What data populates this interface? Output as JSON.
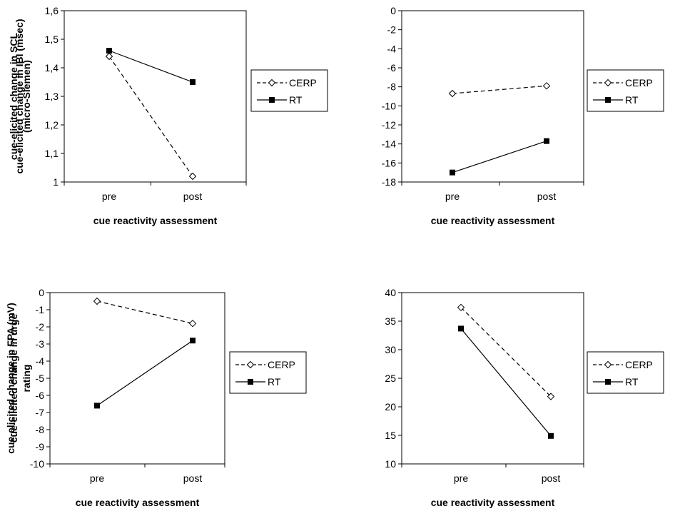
{
  "chart_data": [
    {
      "type": "line",
      "categories": [
        "pre",
        "post"
      ],
      "ylabel": [
        "cue-elicited change in SCL",
        "(micro-Siemen)"
      ],
      "xlabel": "cue reactivity assessment",
      "ylim": [
        1,
        1.6
      ],
      "yticks": [
        1,
        1.1,
        1.2,
        1.3,
        1.4,
        1.5,
        1.6
      ],
      "yticklabels": [
        "1",
        "1,1",
        "1,2",
        "1,3",
        "1,4",
        "1,5",
        "1,6"
      ],
      "legend": "right",
      "series": [
        {
          "name": "CERP",
          "values": [
            1.44,
            1.02
          ],
          "style": "dashed",
          "marker": "diamond-open"
        },
        {
          "name": "RT",
          "values": [
            1.46,
            1.35
          ],
          "style": "solid",
          "marker": "square-filled"
        }
      ]
    },
    {
      "type": "line",
      "categories": [
        "pre",
        "post"
      ],
      "ylabel": [
        "cue-elicited change in IBI (msec)"
      ],
      "xlabel": "cue reactivity assessment",
      "ylim": [
        -18,
        0
      ],
      "yticks": [
        -18,
        -16,
        -14,
        -12,
        -10,
        -8,
        -6,
        -4,
        -2,
        0
      ],
      "yticklabels": [
        "-18",
        "-16",
        "-14",
        "-12",
        "-10",
        "-8",
        "-6",
        "-4",
        "-2",
        "0"
      ],
      "legend": "right",
      "series": [
        {
          "name": "CERP",
          "values": [
            -8.7,
            -7.9
          ],
          "style": "dashed",
          "marker": "diamond-open"
        },
        {
          "name": "RT",
          "values": [
            -17.0,
            -13.7
          ],
          "style": "solid",
          "marker": "square-filled"
        }
      ]
    },
    {
      "type": "line",
      "categories": [
        "pre",
        "post"
      ],
      "ylabel": [
        "cue-elicited change in FPA (mV)"
      ],
      "xlabel": "cue reactivity assessment",
      "ylim": [
        -10,
        0
      ],
      "yticks": [
        -10,
        -9,
        -8,
        -7,
        -6,
        -5,
        -4,
        -3,
        -2,
        -1,
        0
      ],
      "yticklabels": [
        "-10",
        "-9",
        "-8",
        "-7",
        "-6",
        "-5",
        "-4",
        "-3",
        "-2",
        "-1",
        "0"
      ],
      "legend": "right",
      "series": [
        {
          "name": "CERP",
          "values": [
            -0.5,
            -1.8
          ],
          "style": "dashed",
          "marker": "diamond-open"
        },
        {
          "name": "RT",
          "values": [
            -6.6,
            -2.8
          ],
          "style": "solid",
          "marker": "square-filled"
        }
      ]
    },
    {
      "type": "line",
      "categories": [
        "pre",
        "post"
      ],
      "ylabel": [
        "cue-elicited change in urge",
        "rating"
      ],
      "xlabel": "cue reactivity assessment",
      "ylim": [
        10,
        40
      ],
      "yticks": [
        10,
        15,
        20,
        25,
        30,
        35,
        40
      ],
      "yticklabels": [
        "10",
        "15",
        "20",
        "25",
        "30",
        "35",
        "40"
      ],
      "legend": "right",
      "series": [
        {
          "name": "CERP",
          "values": [
            37.4,
            21.8
          ],
          "style": "dashed",
          "marker": "diamond-open"
        },
        {
          "name": "RT",
          "values": [
            33.7,
            14.9
          ],
          "style": "solid",
          "marker": "square-filled"
        }
      ]
    }
  ]
}
